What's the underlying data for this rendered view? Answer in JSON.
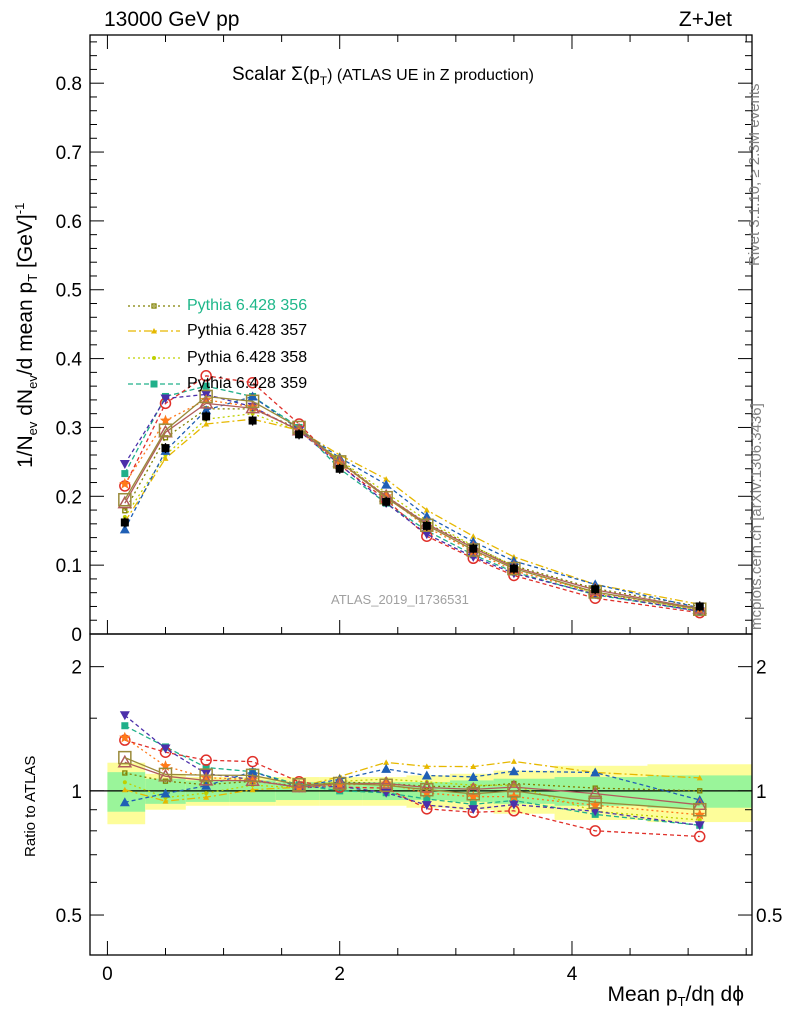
{
  "header": {
    "left": "13000 GeV pp",
    "right": "Z+Jet",
    "title_prefix": "Scalar Σ(p",
    "title_sub": "T",
    "title_suffix": ") (ATLAS UE in Z production)",
    "analysis_id": "ATLAS_2019_I1736531"
  },
  "side_labels": {
    "rivet": "Rivet 3.1.10, ≥ 2.3M events",
    "mcplots": "mcplots.cern.ch [arXiv:1306.3436]"
  },
  "axes": {
    "top_ylabel_main": "1/N",
    "top_ylabel_ev": "ev",
    "top_ylabel_mid": " dN",
    "top_ylabel_ev2": "ev",
    "top_ylabel_rest": "/d mean p",
    "top_ylabel_t": "T",
    "top_ylabel_unit": " [GeV]",
    "top_ylabel_exp": "-1",
    "bottom_ylabel": "Ratio to ATLAS",
    "xlabel_main": "Mean p",
    "xlabel_sub": "T",
    "xlabel_rest": "/dη dϕ",
    "top_yticks": [
      "0",
      "0.1",
      "0.2",
      "0.3",
      "0.4",
      "0.5",
      "0.6",
      "0.7",
      "0.8"
    ],
    "bottom_yticks_left": [
      "0.5",
      "1",
      "2"
    ],
    "bottom_yticks_right": [
      "0.5",
      "1",
      "2"
    ],
    "xticks": [
      "0",
      "2",
      "4"
    ]
  },
  "chart_data": {
    "type": "line",
    "x": [
      0.15,
      0.5,
      0.85,
      1.25,
      1.65,
      2.0,
      2.4,
      2.75,
      3.15,
      3.5,
      4.2,
      5.1
    ],
    "xlim": [
      -0.15,
      5.55
    ],
    "ylim": [
      0,
      0.87
    ],
    "ratio_ylim_log": [
      0.4,
      2.4
    ],
    "grid": false,
    "legend_position": "upper-left",
    "data": {
      "name": "ATLAS",
      "color": "#000000",
      "values": [
        0.162,
        0.27,
        0.316,
        0.31,
        0.29,
        0.24,
        0.192,
        0.157,
        0.124,
        0.095,
        0.065,
        0.04
      ]
    },
    "band_green": [
      0.11,
      0.07,
      0.06,
      0.06,
      0.05,
      0.05,
      0.05,
      0.05,
      0.06,
      0.07,
      0.08,
      0.09
    ],
    "band_yellow": [
      0.17,
      0.1,
      0.08,
      0.08,
      0.08,
      0.08,
      0.08,
      0.09,
      0.1,
      0.12,
      0.15,
      0.16
    ],
    "series": [
      {
        "name": "Pythia 6.428 356",
        "color": "#808000",
        "dash": "2,3",
        "marker": "square-small",
        "values": [
          0.179,
          0.285,
          0.327,
          0.327,
          0.298,
          0.252,
          0.2,
          0.161,
          0.127,
          0.099,
          0.066,
          0.04
        ]
      },
      {
        "name": "Pythia 6.428 357",
        "color": "#e6b800",
        "dash": "8,3,2,3",
        "marker": "tri-small",
        "values": [
          0.163,
          0.255,
          0.305,
          0.312,
          0.296,
          0.26,
          0.225,
          0.18,
          0.142,
          0.112,
          0.072,
          0.043
        ]
      },
      {
        "name": "Pythia 6.428 358",
        "color": "#bfd000",
        "dash": "2,3",
        "marker": "dot",
        "values": [
          0.17,
          0.26,
          0.312,
          0.32,
          0.295,
          0.253,
          0.205,
          0.165,
          0.128,
          0.098,
          0.058,
          0.034
        ]
      },
      {
        "name": "Pythia 6.428 359",
        "color": "#20b08a",
        "dash": "5,3",
        "marker": "square",
        "values": [
          0.233,
          0.345,
          0.36,
          0.345,
          0.3,
          0.24,
          0.19,
          0.15,
          0.115,
          0.09,
          0.057,
          0.033
        ]
      },
      {
        "name": "",
        "color": "#e0302a",
        "dash": "4,3",
        "marker": "circle-open",
        "values": [
          0.215,
          0.335,
          0.375,
          0.365,
          0.305,
          0.245,
          0.195,
          0.142,
          0.11,
          0.085,
          0.052,
          0.031
        ]
      },
      {
        "name": "",
        "color": "#4b2faa",
        "dash": "4,3",
        "marker": "tri-down",
        "values": [
          0.247,
          0.342,
          0.348,
          0.33,
          0.295,
          0.246,
          0.19,
          0.145,
          0.112,
          0.088,
          0.058,
          0.033
        ]
      },
      {
        "name": "",
        "color": "#1f5fb5",
        "dash": "4,3",
        "marker": "tri-up",
        "values": [
          0.152,
          0.266,
          0.325,
          0.345,
          0.297,
          0.256,
          0.217,
          0.171,
          0.134,
          0.106,
          0.072,
          0.038
        ]
      },
      {
        "name": "",
        "color": "#ff7a1a",
        "dash": "2,3",
        "marker": "star",
        "values": [
          0.218,
          0.31,
          0.34,
          0.33,
          0.295,
          0.248,
          0.2,
          0.155,
          0.12,
          0.092,
          0.06,
          0.035
        ]
      },
      {
        "name": "",
        "color": "#b05c5c",
        "dash": "0",
        "marker": "tri-open",
        "values": [
          0.19,
          0.293,
          0.335,
          0.328,
          0.296,
          0.25,
          0.2,
          0.16,
          0.125,
          0.097,
          0.064,
          0.037
        ]
      },
      {
        "name": "",
        "color": "#9a8a3a",
        "dash": "0",
        "marker": "square-open",
        "values": [
          0.195,
          0.296,
          0.345,
          0.338,
          0.3,
          0.25,
          0.198,
          0.158,
          0.122,
          0.095,
          0.061,
          0.036
        ]
      }
    ]
  }
}
